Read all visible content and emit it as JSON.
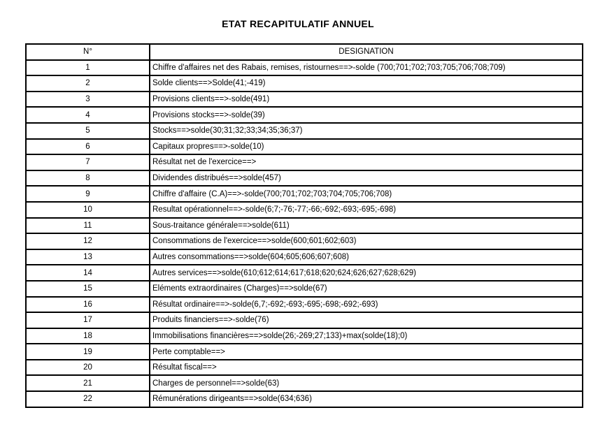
{
  "page": {
    "title": "ETAT RECAPITULATIF ANNUEL"
  },
  "colors": {
    "background": "#ffffff",
    "border": "#000000",
    "text": "#000000"
  },
  "table": {
    "headers": {
      "numero": "N°",
      "designation": "DESIGNATION"
    },
    "rows": [
      {
        "n": "1",
        "designation": "Chiffre d'affaires net des Rabais, remises, ristournes==>-solde (700;701;702;703;705;706;708;709)"
      },
      {
        "n": "2",
        "designation": "Solde clients==>Solde(41;-419)"
      },
      {
        "n": "3",
        "designation": "Provisions clients==>-solde(491)"
      },
      {
        "n": "4",
        "designation": "Provisions stocks==>-solde(39)"
      },
      {
        "n": "5",
        "designation": "Stocks==>solde(30;31;32;33;34;35;36;37)"
      },
      {
        "n": "6",
        "designation": "Capitaux propres==>-solde(10)"
      },
      {
        "n": "7",
        "designation": "Résultat net de l'exercice==>"
      },
      {
        "n": "8",
        "designation": "Dividendes distribués==>solde(457)"
      },
      {
        "n": "9",
        "designation": "Chiffre d'affaire (C.A)==>-solde(700;701;702;703;704;705;706;708)"
      },
      {
        "n": "10",
        "designation": "Resultat opérationnel==>-solde(6;7;-76;-77;-66;-692;-693;-695;-698)"
      },
      {
        "n": "11",
        "designation": "Sous-traitance générale==>solde(611)"
      },
      {
        "n": "12",
        "designation": "Consommations de l'exercice==>solde(600;601;602;603)"
      },
      {
        "n": "13",
        "designation": "Autres consommations==>solde(604;605;606;607;608)"
      },
      {
        "n": "14",
        "designation": "Autres services==>solde(610;612;614;617;618;620;624;626;627;628;629)"
      },
      {
        "n": "15",
        "designation": "Eléments extraordinaires (Charges)==>solde(67)"
      },
      {
        "n": "16",
        "designation": "Résultat ordinaire==>-solde(6,7;-692;-693;-695;-698;-692;-693)"
      },
      {
        "n": "17",
        "designation": "Produits financiers==>-solde(76)"
      },
      {
        "n": "18",
        "designation": "Immobilisations financières==>solde(26;-269;27;133)+max(solde(18);0)"
      },
      {
        "n": "19",
        "designation": "Perte comptable==>"
      },
      {
        "n": "20",
        "designation": "Résultat fiscal==>"
      },
      {
        "n": "21",
        "designation": "Charges de personnel==>solde(63)"
      },
      {
        "n": "22",
        "designation": "Rémunérations dirigeants==>solde(634;636)"
      }
    ]
  }
}
